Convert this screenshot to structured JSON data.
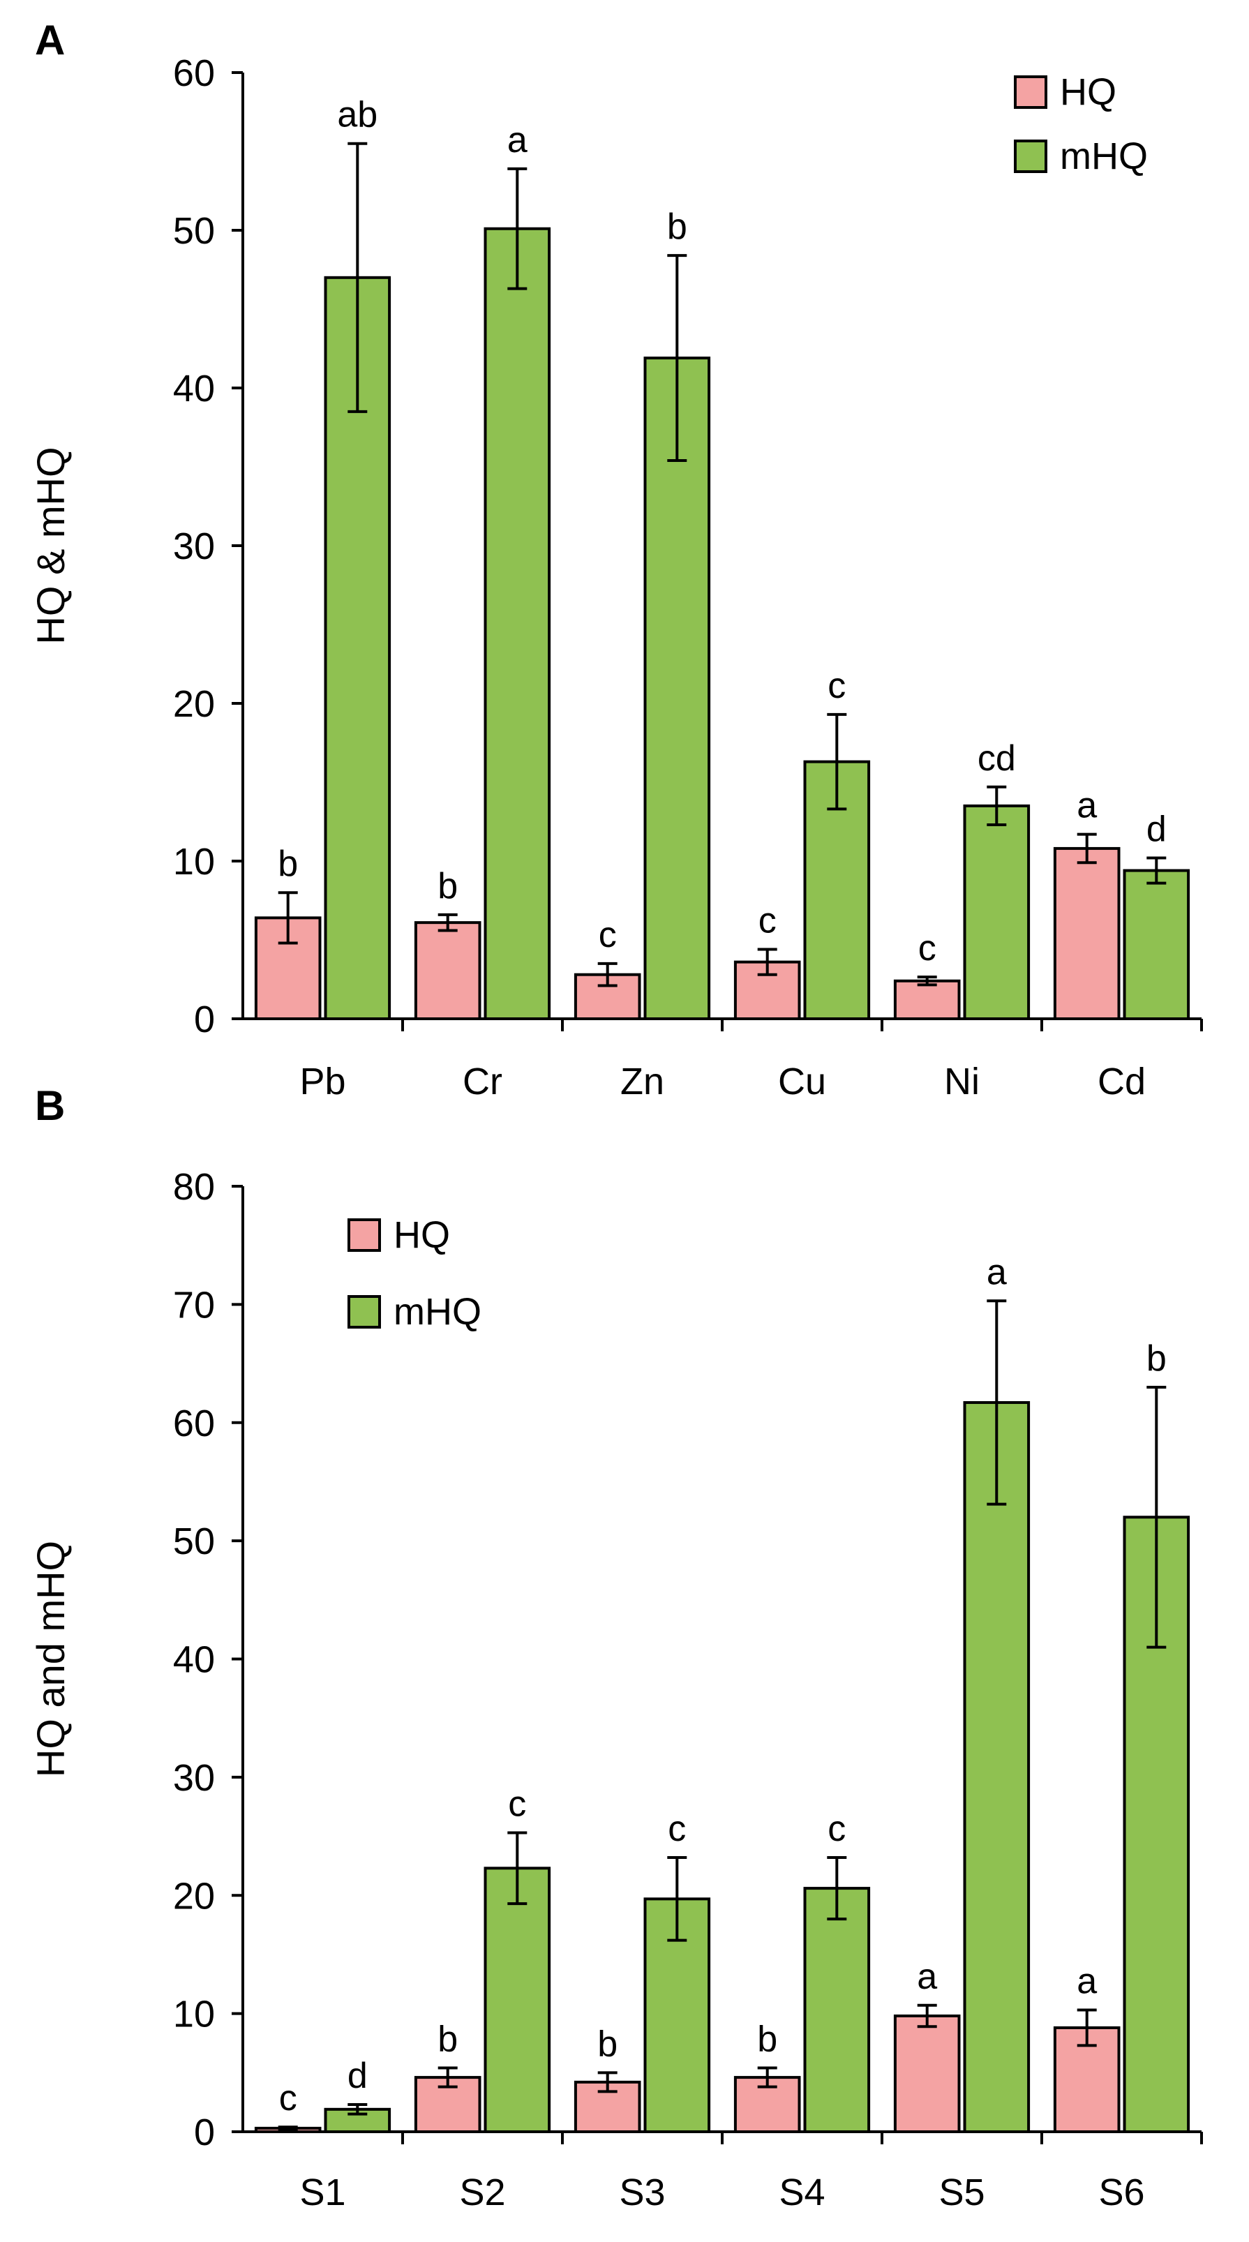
{
  "figure": {
    "panel_labels": [
      "A",
      "B"
    ]
  },
  "colors": {
    "hq_fill": "#F4A3A3",
    "hq_edge": "#000000",
    "mhq_fill": "#8FC151",
    "mhq_edge": "#000000",
    "axis": "#000000"
  },
  "chart_data": [
    {
      "type": "bar",
      "panel": "A",
      "title": "",
      "xlabel": "",
      "ylabel": "HQ & mHQ",
      "ylim": [
        0,
        60
      ],
      "yticks": [
        0,
        10,
        20,
        30,
        40,
        50,
        60
      ],
      "categories": [
        "Pb",
        "Cr",
        "Zn",
        "Cu",
        "Ni",
        "Cd"
      ],
      "legend_position": "top-right",
      "series": [
        {
          "name": "HQ",
          "values": [
            6.4,
            6.1,
            2.8,
            3.6,
            2.4,
            10.8
          ],
          "errors": [
            1.6,
            0.5,
            0.7,
            0.8,
            0.25,
            0.9
          ],
          "letters": [
            "b",
            "b",
            "c",
            "c",
            "c",
            "a"
          ]
        },
        {
          "name": "mHQ",
          "values": [
            47.0,
            50.1,
            41.9,
            16.3,
            13.5,
            9.4
          ],
          "errors": [
            8.5,
            3.8,
            6.5,
            3.0,
            1.2,
            0.8
          ],
          "letters": [
            "ab",
            "a",
            "b",
            "c",
            "cd",
            "d"
          ]
        }
      ]
    },
    {
      "type": "bar",
      "panel": "B",
      "title": "",
      "xlabel": "",
      "ylabel": "HQ and mHQ",
      "ylim": [
        0,
        80
      ],
      "yticks": [
        0,
        10,
        20,
        30,
        40,
        50,
        60,
        70,
        80
      ],
      "categories": [
        "S1",
        "S2",
        "S3",
        "S4",
        "S5",
        "S6"
      ],
      "legend_position": "top-left",
      "series": [
        {
          "name": "HQ",
          "values": [
            0.3,
            4.6,
            4.2,
            4.6,
            9.8,
            8.8
          ],
          "errors": [
            0.1,
            0.8,
            0.8,
            0.8,
            0.9,
            1.5
          ],
          "letters": [
            "c",
            "b",
            "b",
            "b",
            "a",
            "a"
          ]
        },
        {
          "name": "mHQ",
          "values": [
            1.9,
            22.3,
            19.7,
            20.6,
            61.7,
            52.0
          ],
          "errors": [
            0.4,
            3.0,
            3.5,
            2.6,
            8.6,
            11.0
          ],
          "letters": [
            "d",
            "c",
            "c",
            "c",
            "a",
            "b"
          ]
        }
      ]
    }
  ]
}
